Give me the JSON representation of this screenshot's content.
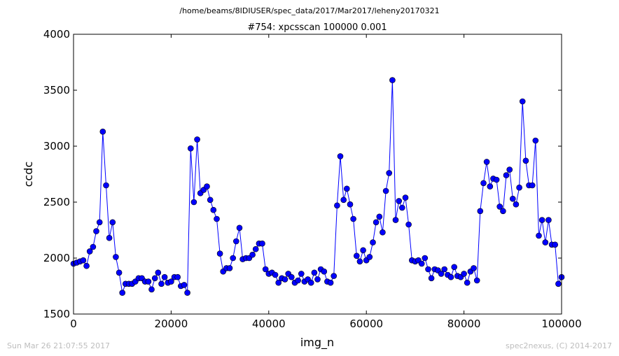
{
  "supertitle": "/home/beams/8IDIUSER/spec_data/2017/Mar2017/leheny20170321",
  "footer": {
    "left": "Sun Mar 26 21:07:55 2017",
    "right": "spec2nexus, (C) 2014-2017"
  },
  "chart_data": {
    "type": "line",
    "title": "#754: xpcsscan 100000 0.001",
    "xlabel": "img_n",
    "ylabel": "ccdc",
    "xlim": [
      0,
      100000
    ],
    "ylim": [
      1500,
      4000
    ],
    "xticks": [
      0,
      20000,
      40000,
      60000,
      80000,
      100000
    ],
    "yticks": [
      1500,
      2000,
      2500,
      3000,
      3500,
      4000
    ],
    "grid": false,
    "marker": "circle",
    "color": "#0000ff",
    "x": [
      0,
      667,
      1333,
      2000,
      2667,
      3333,
      4000,
      4667,
      5333,
      6000,
      6667,
      7333,
      8000,
      8667,
      9333,
      10000,
      10667,
      11333,
      12000,
      12667,
      13333,
      14000,
      14667,
      15333,
      16000,
      16667,
      17333,
      18000,
      18667,
      19333,
      20000,
      20667,
      21333,
      22000,
      22667,
      23333,
      24000,
      24667,
      25333,
      26000,
      26667,
      27333,
      28000,
      28667,
      29333,
      30000,
      30667,
      31333,
      32000,
      32667,
      33333,
      34000,
      34667,
      35333,
      36000,
      36667,
      37333,
      38000,
      38667,
      39333,
      40000,
      40667,
      41333,
      42000,
      42667,
      43333,
      44000,
      44667,
      45333,
      46000,
      46667,
      47333,
      48000,
      48667,
      49333,
      50000,
      50667,
      51333,
      52000,
      52667,
      53333,
      54000,
      54667,
      55333,
      56000,
      56667,
      57333,
      58000,
      58667,
      59333,
      60000,
      60667,
      61333,
      62000,
      62667,
      63333,
      64000,
      64667,
      65333,
      66000,
      66667,
      67333,
      68000,
      68667,
      69333,
      70000,
      70667,
      71333,
      72000,
      72667,
      73333,
      74000,
      74667,
      75333,
      76000,
      76667,
      77333,
      78000,
      78667,
      79333,
      80000,
      80667,
      81333,
      82000,
      82667,
      83333,
      84000,
      84667,
      85333,
      86000,
      86667,
      87333,
      88000,
      88667,
      89333,
      90000,
      90667,
      91333,
      92000,
      92667,
      93333,
      94000,
      94667,
      95333,
      96000,
      96667,
      97333,
      98000,
      98667,
      99333,
      100000
    ],
    "y": [
      1950,
      1960,
      1970,
      1980,
      1930,
      2060,
      2100,
      2240,
      2320,
      3130,
      2650,
      2180,
      2320,
      2010,
      1870,
      1690,
      1770,
      1770,
      1770,
      1790,
      1820,
      1820,
      1790,
      1790,
      1720,
      1820,
      1870,
      1770,
      1830,
      1780,
      1790,
      1830,
      1830,
      1750,
      1760,
      1690,
      2980,
      2500,
      3060,
      2580,
      2610,
      2640,
      2520,
      2430,
      2350,
      2040,
      1880,
      1910,
      1910,
      2000,
      2150,
      2270,
      1990,
      2000,
      2000,
      2030,
      2080,
      2130,
      2130,
      1900,
      1860,
      1870,
      1850,
      1780,
      1820,
      1810,
      1860,
      1830,
      1780,
      1800,
      1860,
      1790,
      1810,
      1780,
      1870,
      1810,
      1900,
      1880,
      1790,
      1780,
      1840,
      2470,
      2910,
      2520,
      2620,
      2480,
      2350,
      2020,
      1970,
      2070,
      1980,
      2010,
      2140,
      2320,
      2370,
      2230,
      2600,
      2760,
      3590,
      2340,
      2510,
      2450,
      2540,
      2300,
      1980,
      1970,
      1980,
      1950,
      2000,
      1900,
      1820,
      1900,
      1890,
      1860,
      1900,
      1850,
      1830,
      1920,
      1840,
      1830,
      1860,
      1780,
      1880,
      1910,
      1800,
      2420,
      2670,
      2860,
      2640,
      2710,
      2700,
      2460,
      2420,
      2740,
      2790,
      2530,
      2480,
      2630,
      3400,
      2870,
      2650,
      2650,
      3050,
      2200,
      2340,
      2140,
      2340,
      2120,
      2120,
      1770,
      1830
    ]
  }
}
